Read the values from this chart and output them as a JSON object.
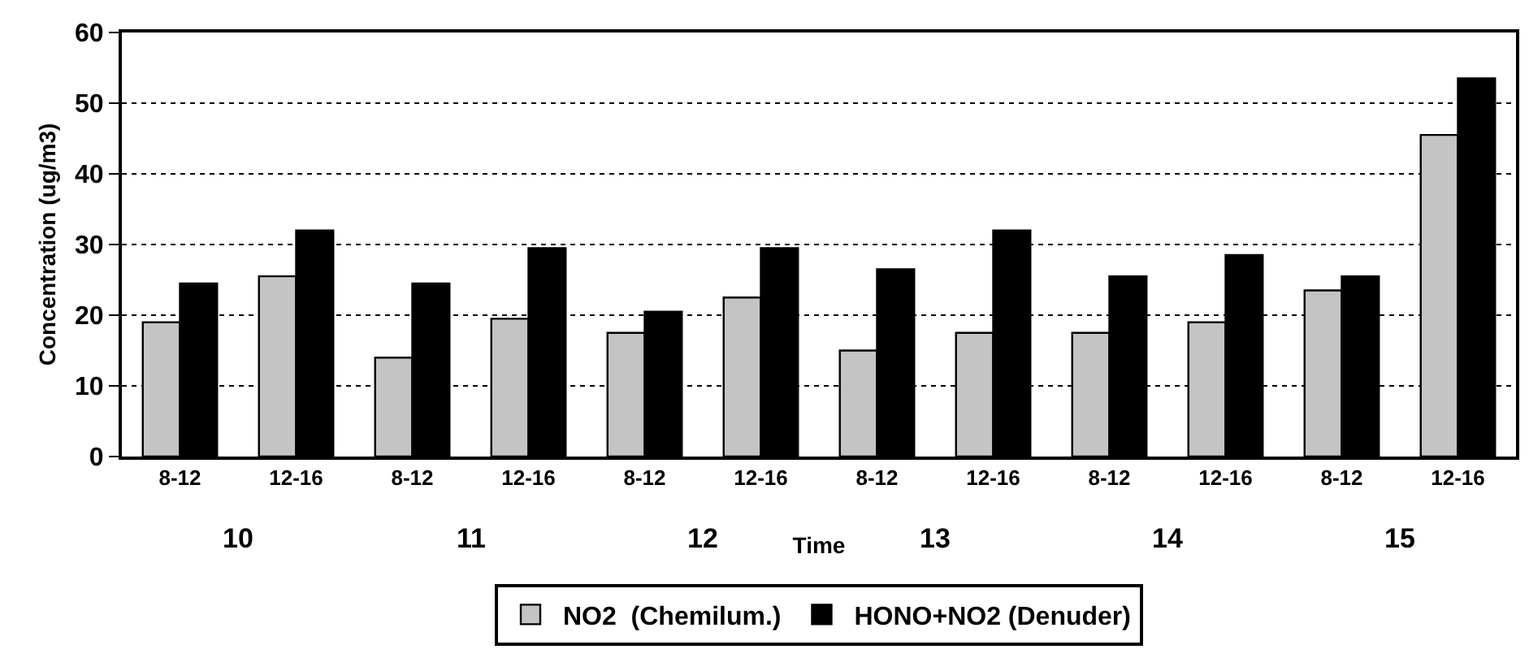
{
  "chart_data": {
    "type": "bar",
    "xlabel": "Time",
    "ylabel": "Concentration (ug/m3)",
    "categories": [
      "8-12",
      "12-16",
      "8-12",
      "12-16",
      "8-12",
      "12-16",
      "8-12",
      "12-16",
      "8-12",
      "12-16",
      "8-12",
      "12-16"
    ],
    "series": [
      {
        "name": "NO2  (Chemilum.)",
        "color": "#c4c4c4",
        "values": [
          19,
          25.5,
          14,
          19.5,
          17.5,
          22.5,
          15,
          17.5,
          17.5,
          19,
          23.5,
          45.5
        ]
      },
      {
        "name": "HONO+NO2 (Denuder)",
        "color": "#000000",
        "values": [
          24.5,
          32,
          24.5,
          29.5,
          20.5,
          29.5,
          26.5,
          32,
          25.5,
          28.5,
          25.5,
          53.5
        ]
      }
    ],
    "annotations": [
      "10",
      "11",
      "12",
      "13",
      "14",
      "15"
    ],
    "ylim": [
      0,
      60
    ],
    "yticks": [
      0,
      10,
      20,
      30,
      40,
      50,
      60
    ],
    "grid": "y",
    "legend": "bottom"
  }
}
